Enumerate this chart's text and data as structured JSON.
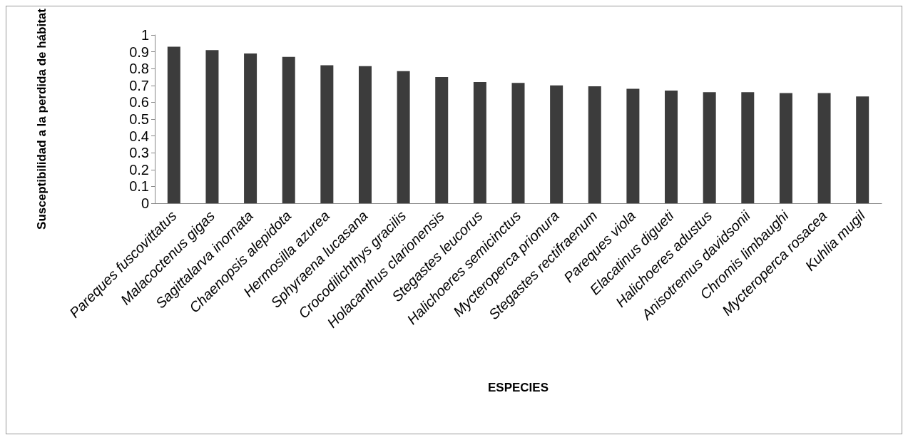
{
  "chart_data": {
    "type": "bar",
    "xlabel": "ESPECIES",
    "ylabel": "Susceptibilidad a la perdida de hábitat",
    "categories": [
      "Pareques fuscovittatus",
      "Malacoctenus gigas",
      "Sagittalarva inornata",
      "Chaenopsis alepidota",
      "Hermosilla azurea",
      "Sphyraena lucasana",
      "Crocodilichthys gracilis",
      "Holacanthus clarionensis",
      "Stegastes leucorus",
      "Halichoeres semicinctus",
      "Mycteroperca prionura",
      "Stegastes rectifraenum",
      "Pareques viola",
      "Elacatinus digueti",
      "Halichoeres adustus",
      "Anisotremus davidsonii",
      "Chromis limbaughi",
      "Mycteroperca rosacea",
      "Kuhlia mugil"
    ],
    "values": [
      0.93,
      0.91,
      0.89,
      0.87,
      0.82,
      0.815,
      0.785,
      0.75,
      0.72,
      0.715,
      0.7,
      0.695,
      0.68,
      0.67,
      0.66,
      0.66,
      0.655,
      0.655,
      0.635
    ],
    "color": "#3c3c3c",
    "ylim": [
      0,
      1
    ],
    "yticks": [
      0,
      0.1,
      0.2,
      0.3,
      0.4,
      0.5,
      0.6,
      0.7,
      0.8,
      0.9,
      1
    ],
    "grid": false
  }
}
